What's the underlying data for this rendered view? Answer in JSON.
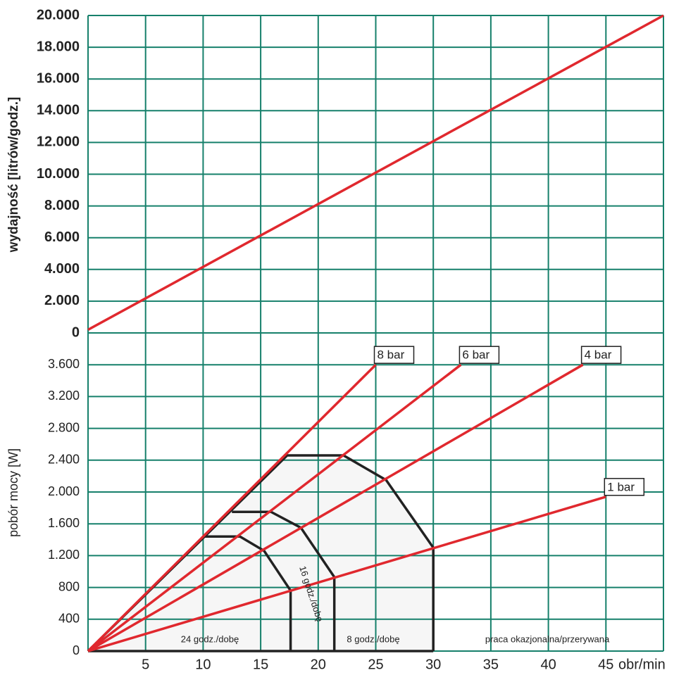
{
  "chart_data": [
    {
      "type": "line",
      "ylabel": "wydajność [litrów/godz.]",
      "xlim": [
        0,
        50
      ],
      "xticks": [
        5,
        10,
        15,
        20,
        25,
        30,
        35,
        40,
        45
      ],
      "ylim": [
        0,
        20000
      ],
      "yticks": [
        0,
        {
          "value": 2000,
          "label": "2.000"
        },
        {
          "value": 4000,
          "label": "4.000"
        },
        {
          "value": 6000,
          "label": "6.000"
        },
        {
          "value": 8000,
          "label": "8.000"
        },
        {
          "value": 10000,
          "label": "10.000"
        },
        {
          "value": 12000,
          "label": "12.000"
        },
        {
          "value": 14000,
          "label": "14.000"
        },
        {
          "value": 16000,
          "label": "16.000"
        },
        {
          "value": 18000,
          "label": "18.000"
        },
        {
          "value": 20000,
          "label": "20.000"
        }
      ],
      "grid": true,
      "grid_color": "#16806b",
      "series": [
        {
          "color": "#e0282e",
          "x": [
            0,
            50
          ],
          "values": [
            200,
            20000
          ]
        }
      ]
    },
    {
      "type": "line",
      "ylabel": "pobór mocy [W]",
      "xlabel": "obr/min",
      "xlim": [
        0,
        50
      ],
      "xticks": [
        5,
        10,
        15,
        20,
        25,
        30,
        35,
        40,
        45
      ],
      "ylim": [
        0,
        4000
      ],
      "yticks": [
        0,
        400,
        800,
        {
          "value": 1200,
          "label": "1.200"
        },
        {
          "value": 1600,
          "label": "1.600"
        },
        {
          "value": 2000,
          "label": "2.000"
        },
        {
          "value": 2400,
          "label": "2.400"
        },
        {
          "value": 2800,
          "label": "2.800"
        },
        {
          "value": 3200,
          "label": "3.200"
        },
        {
          "value": 3600,
          "label": "3.600"
        }
      ],
      "grid": true,
      "grid_color": "#16806b",
      "series": [
        {
          "name": "8 bar",
          "color": "#e0282e",
          "x": [
            0,
            25
          ],
          "values": [
            0,
            3600
          ]
        },
        {
          "name": "6 bar",
          "color": "#e0282e",
          "x": [
            0,
            32.4
          ],
          "values": [
            0,
            3600
          ]
        },
        {
          "name": "4 bar",
          "color": "#e0282e",
          "x": [
            0,
            43
          ],
          "values": [
            0,
            3600
          ]
        },
        {
          "name": "1 bar",
          "color": "#e0282e",
          "x": [
            0,
            45
          ],
          "values": [
            0,
            1940
          ]
        }
      ],
      "zones": {
        "color": "#222222",
        "fill": "#f6f6f6",
        "lines": [
          {
            "x": [
              0,
              30
            ],
            "values": [
              0,
              0
            ]
          },
          {
            "x": [
              0,
              17.3,
              22.2,
              25.9,
              30,
              30
            ],
            "values": [
              0,
              2460,
              2460,
              2150,
              1300,
              0
            ]
          },
          {
            "x": [
              12.5,
              15.9,
              18.5,
              21.4,
              21.4
            ],
            "values": [
              1750,
              1750,
              1550,
              930,
              0
            ]
          },
          {
            "x": [
              10,
              13.2,
              15.3,
              17.6,
              17.6
            ],
            "values": [
              1440,
              1440,
              1260,
              760,
              0
            ]
          }
        ]
      },
      "annotations": [
        "24 godz./dobę",
        "16 godz./dobę",
        "8 godz./dobę",
        "praca okazjonalna/przerywana"
      ]
    }
  ]
}
